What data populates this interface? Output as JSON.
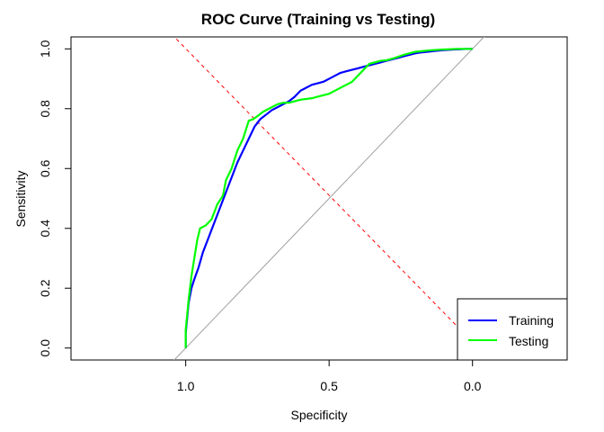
{
  "chart_data": {
    "type": "line",
    "title": "ROC Curve (Training vs Testing)",
    "xlabel": "Specificity",
    "ylabel": "Sensitivity",
    "xlim": [
      1.4,
      -0.33
    ],
    "ylim": [
      -0.04,
      1.04
    ],
    "x_reversed": true,
    "x_ticks": [
      1.0,
      0.5,
      0.0
    ],
    "x_tick_labels": [
      "1.0",
      "0.5",
      "0.0"
    ],
    "y_ticks": [
      0.0,
      0.2,
      0.4,
      0.6,
      0.8,
      1.0
    ],
    "y_tick_labels": [
      "0.0",
      "0.2",
      "0.4",
      "0.6",
      "0.8",
      "1.0"
    ],
    "grid": false,
    "legend_position": "bottom-right",
    "series": [
      {
        "name": "Training",
        "color": "#0000FF",
        "x": [
          1.0,
          1.0,
          0.995,
          0.99,
          0.98,
          0.97,
          0.955,
          0.94,
          0.92,
          0.9,
          0.88,
          0.86,
          0.84,
          0.82,
          0.8,
          0.78,
          0.76,
          0.74,
          0.72,
          0.7,
          0.68,
          0.66,
          0.64,
          0.62,
          0.6,
          0.58,
          0.56,
          0.54,
          0.52,
          0.5,
          0.48,
          0.46,
          0.44,
          0.42,
          0.4,
          0.38,
          0.36,
          0.34,
          0.32,
          0.3,
          0.28,
          0.26,
          0.24,
          0.22,
          0.2,
          0.18,
          0.16,
          0.14,
          0.12,
          0.1,
          0.08,
          0.06,
          0.04,
          0.02,
          0.0
        ],
        "y": [
          0.0,
          0.05,
          0.1,
          0.15,
          0.2,
          0.23,
          0.27,
          0.32,
          0.37,
          0.42,
          0.47,
          0.52,
          0.57,
          0.62,
          0.66,
          0.7,
          0.74,
          0.765,
          0.78,
          0.795,
          0.805,
          0.815,
          0.825,
          0.84,
          0.86,
          0.87,
          0.88,
          0.885,
          0.89,
          0.9,
          0.91,
          0.92,
          0.925,
          0.93,
          0.935,
          0.94,
          0.945,
          0.95,
          0.955,
          0.96,
          0.965,
          0.97,
          0.975,
          0.98,
          0.985,
          0.988,
          0.99,
          0.992,
          0.994,
          0.996,
          0.997,
          0.998,
          0.999,
          1.0,
          1.0
        ]
      },
      {
        "name": "Testing",
        "color": "#00FF00",
        "x": [
          1.0,
          1.0,
          0.99,
          0.98,
          0.97,
          0.96,
          0.95,
          0.93,
          0.91,
          0.89,
          0.87,
          0.86,
          0.84,
          0.82,
          0.8,
          0.79,
          0.78,
          0.765,
          0.75,
          0.73,
          0.7,
          0.68,
          0.66,
          0.64,
          0.6,
          0.56,
          0.54,
          0.52,
          0.5,
          0.48,
          0.46,
          0.44,
          0.42,
          0.4,
          0.38,
          0.36,
          0.34,
          0.32,
          0.3,
          0.27,
          0.24,
          0.2,
          0.15,
          0.1,
          0.05,
          0.0
        ],
        "y": [
          0.0,
          0.06,
          0.16,
          0.24,
          0.3,
          0.36,
          0.4,
          0.41,
          0.43,
          0.48,
          0.51,
          0.56,
          0.6,
          0.66,
          0.7,
          0.73,
          0.76,
          0.765,
          0.775,
          0.79,
          0.805,
          0.815,
          0.82,
          0.82,
          0.83,
          0.835,
          0.84,
          0.845,
          0.85,
          0.86,
          0.87,
          0.88,
          0.89,
          0.91,
          0.93,
          0.95,
          0.955,
          0.96,
          0.962,
          0.97,
          0.98,
          0.99,
          0.995,
          0.998,
          1.0,
          1.0
        ]
      }
    ],
    "reference_lines": [
      {
        "kind": "diagonal",
        "color": "#A0A0A0",
        "style": "solid",
        "points": [
          [
            1.05,
            -0.05
          ],
          [
            -0.05,
            1.05
          ]
        ]
      },
      {
        "kind": "threshold",
        "color": "#FF0000",
        "style": "dashed",
        "points": [
          [
            1.05,
            1.05
          ],
          [
            0.0,
            0.02
          ]
        ]
      }
    ]
  }
}
